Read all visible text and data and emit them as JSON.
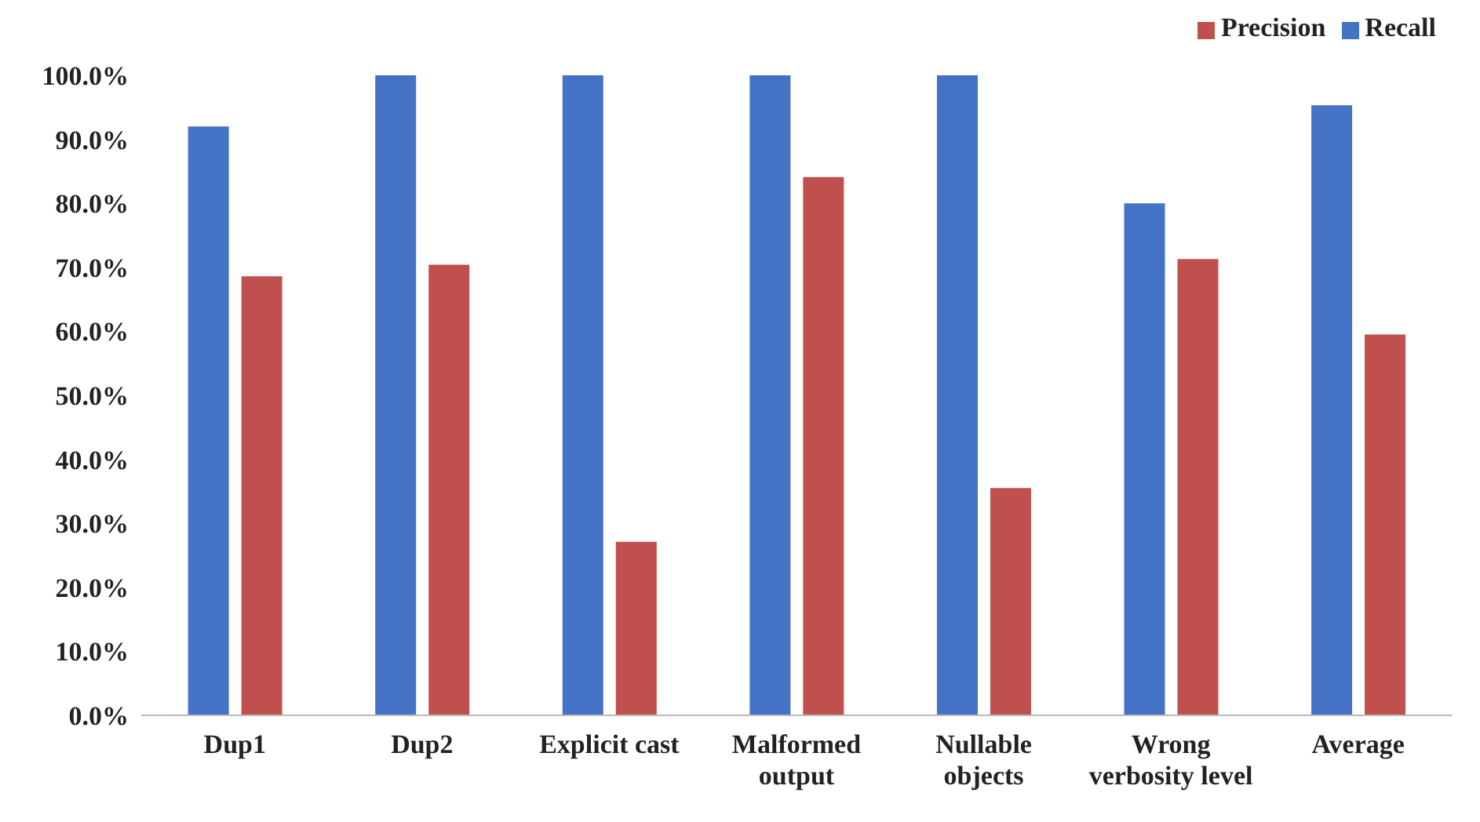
{
  "chart_data": {
    "type": "bar",
    "categories": [
      "Dup1",
      "Dup2",
      "Explicit cast",
      "Malformed output",
      "Nullable objects",
      "Wrong verbosity level",
      "Average"
    ],
    "series": [
      {
        "name": "Recall",
        "color": "#4472c4",
        "values": [
          92,
          100,
          100,
          100,
          100,
          80,
          95.3
        ]
      },
      {
        "name": "Precision",
        "color": "#c0504d",
        "values": [
          68.6,
          70.4,
          27.1,
          84.1,
          35.5,
          71.3,
          59.5
        ]
      }
    ],
    "ylim": [
      0,
      100
    ],
    "yticks": [
      {
        "value": 0,
        "label": "0.0%"
      },
      {
        "value": 10,
        "label": "10.0%"
      },
      {
        "value": 20,
        "label": "20.0%"
      },
      {
        "value": 30,
        "label": "30.0%"
      },
      {
        "value": 40,
        "label": "40.0%"
      },
      {
        "value": 50,
        "label": "50.0%"
      },
      {
        "value": 60,
        "label": "60.0%"
      },
      {
        "value": 70,
        "label": "70.0%"
      },
      {
        "value": 80,
        "label": "80.0%"
      },
      {
        "value": 90,
        "label": "90.0%"
      },
      {
        "value": 100,
        "label": "100.0%"
      }
    ],
    "grid": false,
    "legend": "top right"
  }
}
